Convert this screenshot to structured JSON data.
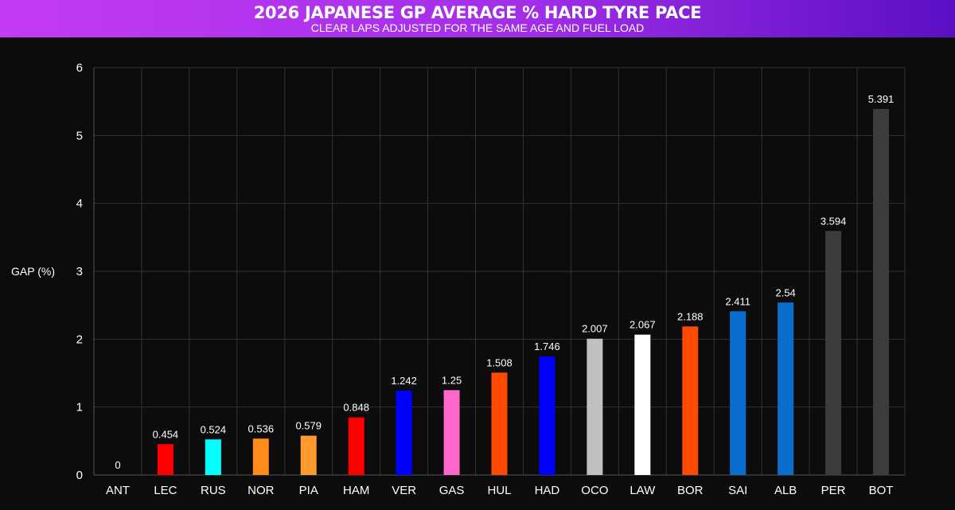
{
  "chart_data": {
    "type": "bar",
    "title": "2026 JAPANESE GP AVERAGE % HARD TYRE PACE",
    "subtitle": "CLEAR LAPS ADJUSTED FOR THE SAME AGE AND FUEL LOAD",
    "xlabel": "",
    "ylabel": "GAP (%)",
    "ylim": [
      0,
      6
    ],
    "yticks": [
      0,
      1,
      2,
      3,
      4,
      5,
      6
    ],
    "grid": true,
    "categories": [
      "ANT",
      "LEC",
      "RUS",
      "NOR",
      "PIA",
      "HAM",
      "VER",
      "GAS",
      "HUL",
      "HAD",
      "OCO",
      "LAW",
      "BOR",
      "SAI",
      "ALB",
      "PER",
      "BOT"
    ],
    "values": [
      0,
      0.454,
      0.524,
      0.536,
      0.579,
      0.848,
      1.242,
      1.25,
      1.508,
      1.746,
      2.007,
      2.067,
      2.188,
      2.411,
      2.54,
      3.594,
      5.391
    ],
    "labels": [
      "0",
      "0.454",
      "0.524",
      "0.536",
      "0.579",
      "0.848",
      "1.242",
      "1.25",
      "1.508",
      "1.746",
      "2.007",
      "2.067",
      "2.188",
      "2.411",
      "2.54",
      "3.594",
      "5.391"
    ],
    "colors": [
      "#00d2be",
      "#ff0000",
      "#00ffff",
      "#ff8c1a",
      "#ff9a2e",
      "#ff0000",
      "#0000ff",
      "#ff66cc",
      "#ff4a00",
      "#0000ff",
      "#c0c0c0",
      "#ffffff",
      "#ff4a00",
      "#0a6ecf",
      "#0a6ecf",
      "#3c3c3c",
      "#3c3c3c"
    ]
  }
}
